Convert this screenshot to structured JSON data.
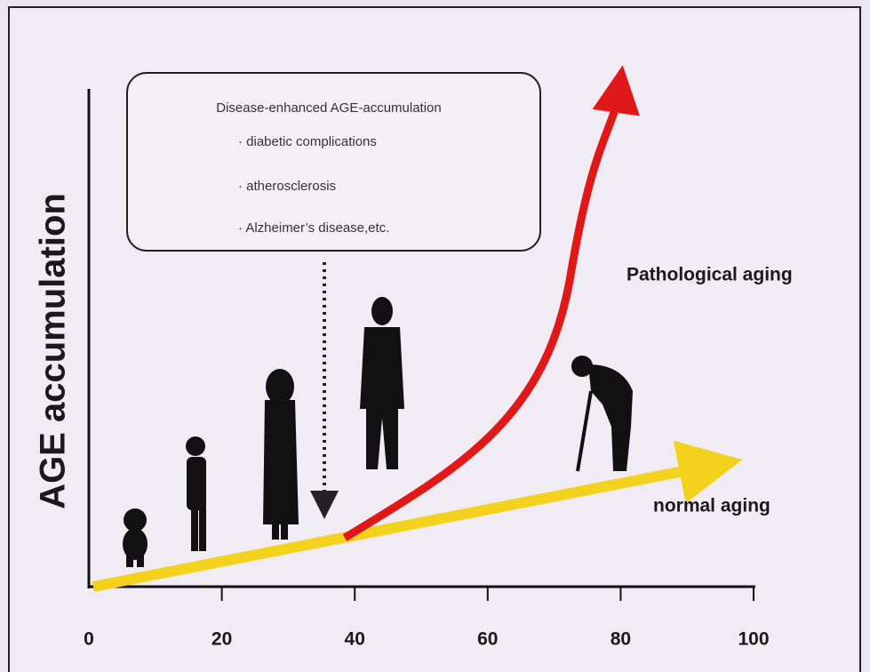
{
  "axis": {
    "y_label": "AGE accumulation",
    "x_ticks": [
      0,
      20,
      40,
      60,
      80,
      100
    ]
  },
  "callout": {
    "title": "Disease-enhanced AGE-accumulation",
    "items": [
      "· diabetic complications",
      "· atherosclerosis",
      "· Alzheimer’s disease,etc."
    ]
  },
  "curves": {
    "pathological": "Pathological aging",
    "normal": "normal aging"
  }
}
